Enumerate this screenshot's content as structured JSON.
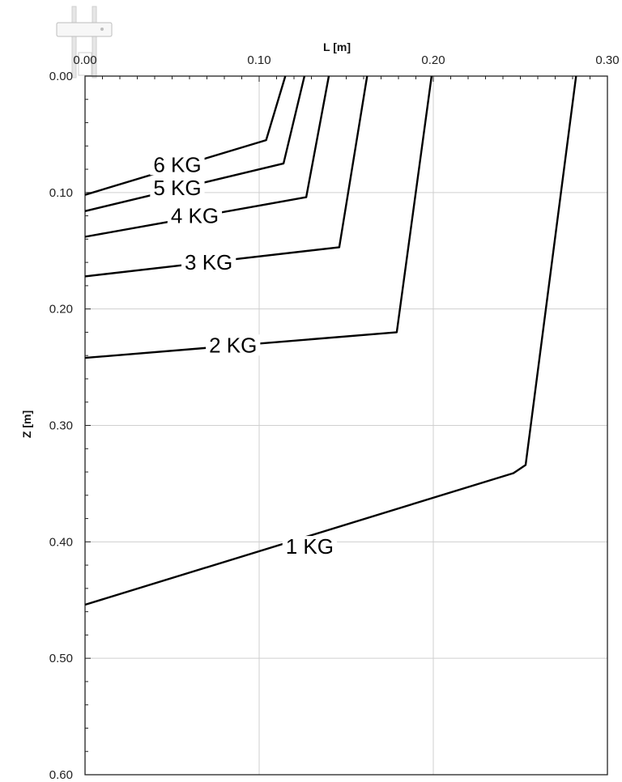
{
  "chart_data": {
    "type": "line",
    "title": "",
    "xlabel": "L [m]",
    "ylabel": "Z [m]",
    "x_axis_position": "top",
    "y_axis_inverted": true,
    "xlim": [
      0.0,
      0.3
    ],
    "ylim": [
      0.0,
      0.6
    ],
    "x_ticks": [
      "0.00",
      "0.10",
      "0.20",
      "0.30"
    ],
    "y_ticks": [
      "0.00",
      "0.10",
      "0.20",
      "0.30",
      "0.40",
      "0.50",
      "0.60"
    ],
    "grid": true,
    "series": [
      {
        "name": "6 KG",
        "points": [
          [
            0.0,
            0.102
          ],
          [
            0.104,
            0.055
          ],
          [
            0.115,
            0.0
          ]
        ]
      },
      {
        "name": "5 KG",
        "points": [
          [
            0.0,
            0.116
          ],
          [
            0.114,
            0.075
          ],
          [
            0.126,
            0.0
          ]
        ]
      },
      {
        "name": "4 KG",
        "points": [
          [
            0.0,
            0.138
          ],
          [
            0.127,
            0.104
          ],
          [
            0.14,
            0.0
          ]
        ]
      },
      {
        "name": "3 KG",
        "points": [
          [
            0.0,
            0.172
          ],
          [
            0.146,
            0.147
          ],
          [
            0.162,
            0.0
          ]
        ]
      },
      {
        "name": "2 KG",
        "points": [
          [
            0.0,
            0.242
          ],
          [
            0.179,
            0.22
          ],
          [
            0.199,
            0.0
          ]
        ]
      },
      {
        "name": "1 KG",
        "points": [
          [
            0.0,
            0.454
          ],
          [
            0.246,
            0.341
          ],
          [
            0.253,
            0.334
          ],
          [
            0.282,
            0.0
          ]
        ]
      }
    ],
    "contour_labels": [
      {
        "text": "6 KG",
        "x": 0.053,
        "y": 0.076
      },
      {
        "text": "5 KG",
        "x": 0.053,
        "y": 0.096
      },
      {
        "text": "4 KG",
        "x": 0.063,
        "y": 0.12
      },
      {
        "text": "3 KG",
        "x": 0.071,
        "y": 0.16
      },
      {
        "text": "2 KG",
        "x": 0.085,
        "y": 0.231
      },
      {
        "text": "1 KG",
        "x": 0.129,
        "y": 0.404
      }
    ]
  }
}
